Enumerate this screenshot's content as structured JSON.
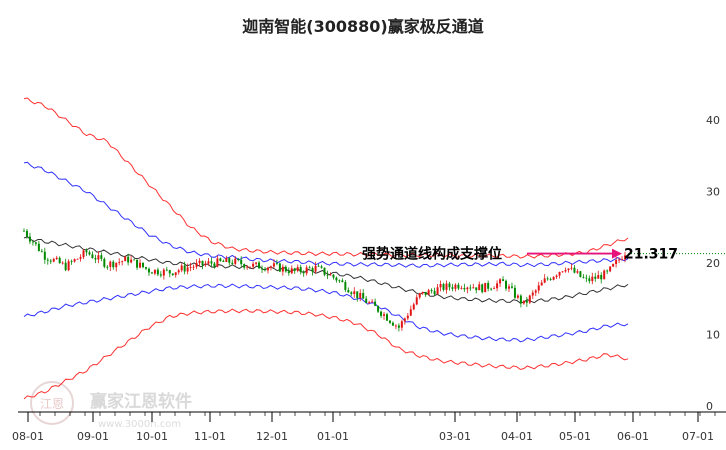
{
  "chart_data": {
    "type": "line",
    "title": "迦南智能(300880)赢家极反通道",
    "x_ticks": [
      "08-01",
      "09-01",
      "10-01",
      "11-01",
      "12-01",
      "01-01",
      "03-01",
      "04-01",
      "05-01",
      "06-01",
      "07-01"
    ],
    "y_ticks": [
      0,
      10,
      20,
      30,
      40
    ],
    "ylim": [
      0,
      44
    ],
    "grid": false,
    "series": [],
    "upper_outer": [
      43,
      42,
      40,
      38,
      37,
      34,
      31,
      28,
      25,
      23,
      22,
      21.7,
      21.5,
      21.4,
      21.3,
      21.3,
      21.2,
      21.2,
      21.1,
      21.1,
      21.1,
      21.0,
      21.0,
      21.0,
      20.9,
      21.0,
      21.2,
      21.5,
      22.5,
      23.5
    ],
    "upper_inner": [
      34,
      33,
      31.5,
      30,
      28,
      26,
      24,
      22.5,
      21.5,
      21,
      20.8,
      20.5,
      20.3,
      20.2,
      20,
      19.9,
      19.8,
      19.8,
      19.7,
      19.6,
      19.7,
      19.8,
      19.8,
      19.9,
      19.7,
      19.8,
      20,
      20.2,
      20.4,
      20.6
    ],
    "mid_line": [
      23.5,
      23,
      22.5,
      22,
      21.5,
      21,
      20.5,
      20,
      19.8,
      19.6,
      19.5,
      19.4,
      19.2,
      19,
      18.8,
      18.5,
      18,
      17.3,
      16.5,
      15.8,
      15.3,
      15.0,
      14.8,
      14.7,
      14.6,
      14.8,
      15.2,
      15.8,
      16.4,
      17
    ],
    "lower_inner": [
      12.5,
      13.2,
      14,
      14.5,
      15,
      15.5,
      16,
      16.5,
      16.7,
      16.8,
      16.8,
      16.7,
      16.6,
      16.5,
      16.2,
      15.8,
      15,
      14,
      12.5,
      11,
      10.2,
      9.8,
      9.5,
      9.3,
      9.2,
      9.6,
      10,
      10.5,
      11.2,
      11.5
    ],
    "lower_outer": [
      1,
      2,
      3.5,
      5,
      7,
      9,
      11,
      12.5,
      13,
      13.2,
      13.3,
      13.3,
      13.2,
      13.1,
      12.8,
      12.3,
      11.5,
      10,
      8,
      7,
      6.3,
      6,
      5.7,
      5.5,
      5.3,
      5.6,
      6,
      6.5,
      7.2,
      6.6
    ],
    "close": [
      24.5,
      21,
      19.5,
      21.5,
      19.8,
      20.5,
      19,
      18.7,
      19.5,
      20,
      20.2,
      19.6,
      19.5,
      18.8,
      19.3,
      17.8,
      15.5,
      13.5,
      11,
      15.5,
      16.5,
      17,
      16.5,
      17.3,
      14.2,
      17.5,
      19.5,
      17.5,
      18.5,
      22
    ],
    "support_line": 21.317,
    "annotations": [
      {
        "text": "强势通道线构成支撑位"
      },
      {
        "text": "21.317"
      }
    ],
    "watermark": "赢家江恩软件",
    "watermark_url": "www.3000n.com",
    "watermark_seal": "江恩"
  },
  "colors": {
    "upper_outer": "#ff3030",
    "upper_inner": "#3030ff",
    "mid_line": "#333333",
    "lower_inner": "#3030ff",
    "lower_outer": "#ff3030",
    "candle_up": "#e31414",
    "candle_down": "#008a00",
    "arrow": "#e6147a",
    "support_dotted": "#008800"
  }
}
